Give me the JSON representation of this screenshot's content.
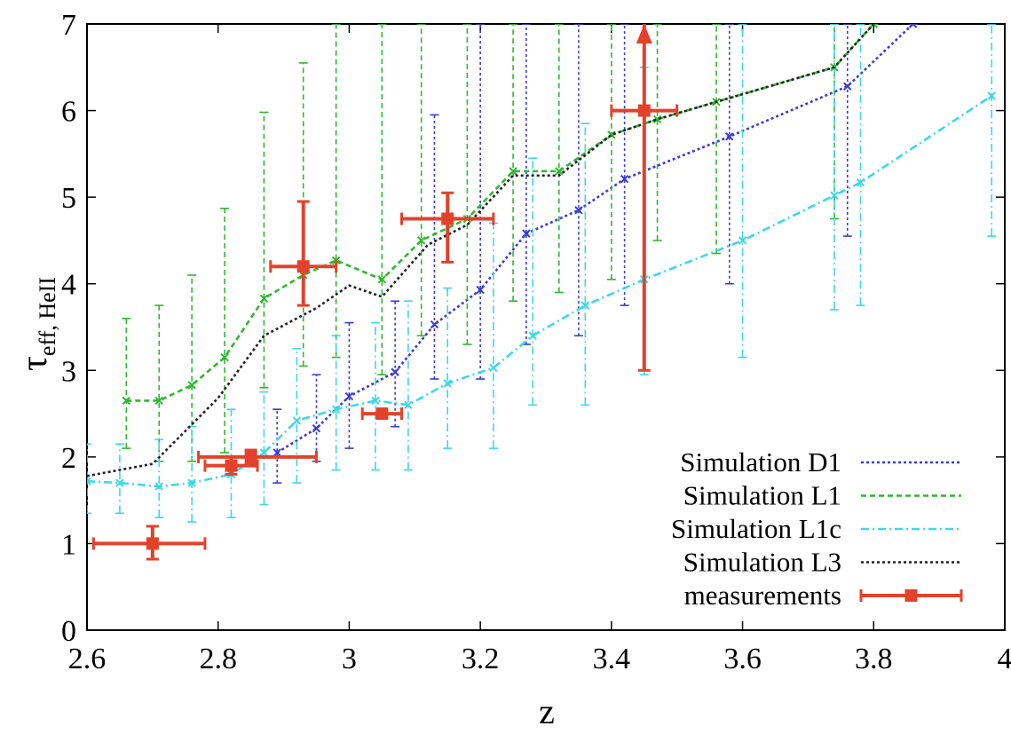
{
  "chart_data": {
    "type": "line",
    "xlabel": "z",
    "ylabel_main": "τ",
    "ylabel_sub": "eff, HeII",
    "xlim": [
      2.6,
      4.0
    ],
    "ylim": [
      0,
      7
    ],
    "xticks": [
      2.6,
      2.8,
      3.0,
      3.2,
      3.4,
      3.6,
      3.8,
      4.0
    ],
    "xtick_labels": [
      "2.6",
      "2.8",
      "3",
      "3.2",
      "3.4",
      "3.6",
      "3.8",
      "4"
    ],
    "yticks": [
      0,
      1,
      2,
      3,
      4,
      5,
      6,
      7
    ],
    "ytick_labels": [
      "0",
      "1",
      "2",
      "3",
      "4",
      "5",
      "6",
      "7"
    ],
    "grid": false,
    "legend_position": "bottom-right",
    "series": [
      {
        "name": "Simulation D1",
        "color": "#3b3bd6",
        "style": "dotted",
        "x": [
          2.89,
          2.95,
          3.0,
          3.07,
          3.13,
          3.2,
          3.27,
          3.35,
          3.42,
          3.58,
          3.76,
          3.86
        ],
        "y": [
          2.05,
          2.33,
          2.7,
          2.98,
          3.53,
          3.93,
          4.58,
          4.85,
          5.21,
          5.7,
          6.28,
          7.0
        ],
        "ylow": [
          1.7,
          1.95,
          2.1,
          2.35,
          2.9,
          2.9,
          3.3,
          3.4,
          3.75,
          4.0,
          4.55,
          7.0
        ],
        "yhigh": [
          2.55,
          2.95,
          3.55,
          3.8,
          5.95,
          7.0,
          7.0,
          7.0,
          7.0,
          7.0,
          7.0,
          7.0
        ]
      },
      {
        "name": "Simulation L1",
        "color": "#2fb82f",
        "style": "dashed",
        "x": [
          2.66,
          2.71,
          2.76,
          2.81,
          2.87,
          2.93,
          2.98,
          3.05,
          3.11,
          3.18,
          3.25,
          3.32,
          3.4,
          3.47,
          3.56,
          3.74,
          3.8
        ],
        "y": [
          2.65,
          2.65,
          2.83,
          3.15,
          3.83,
          4.1,
          4.27,
          4.05,
          4.5,
          4.75,
          5.3,
          5.3,
          5.72,
          5.9,
          6.1,
          6.5,
          7.0
        ],
        "ylow": [
          2.1,
          1.95,
          1.95,
          2.05,
          2.8,
          3.05,
          3.15,
          2.95,
          3.4,
          3.3,
          3.8,
          3.9,
          4.05,
          4.5,
          4.35,
          4.75,
          7.0
        ],
        "yhigh": [
          3.6,
          3.75,
          4.1,
          4.87,
          5.98,
          6.55,
          7.0,
          7.0,
          7.0,
          7.0,
          7.0,
          7.0,
          7.0,
          7.0,
          7.0,
          7.0,
          7.0
        ]
      },
      {
        "name": "Simulation L1c",
        "color": "#3cd8e8",
        "style": "dashdot",
        "x": [
          2.6,
          2.65,
          2.71,
          2.76,
          2.82,
          2.87,
          2.92,
          2.98,
          3.04,
          3.09,
          3.15,
          3.22,
          3.28,
          3.36,
          3.45,
          3.6,
          3.74,
          3.78,
          3.98
        ],
        "y": [
          1.72,
          1.7,
          1.66,
          1.7,
          1.8,
          2.05,
          2.42,
          2.55,
          2.65,
          2.6,
          2.85,
          3.03,
          3.4,
          3.75,
          4.05,
          4.5,
          5.02,
          5.17,
          6.17
        ],
        "ylow": [
          1.35,
          1.35,
          1.3,
          1.25,
          1.3,
          1.45,
          1.7,
          1.85,
          1.85,
          1.85,
          2.1,
          2.1,
          2.6,
          2.6,
          2.95,
          3.15,
          3.7,
          3.75,
          4.55
        ],
        "yhigh": [
          2.15,
          2.15,
          2.2,
          2.35,
          2.55,
          2.75,
          3.25,
          3.4,
          3.55,
          3.8,
          3.95,
          4.7,
          5.45,
          5.85,
          6.5,
          7.0,
          7.0,
          7.0,
          7.0
        ]
      },
      {
        "name": "Simulation L3",
        "color": "#222222",
        "style": "dotted",
        "x": [
          2.6,
          2.7,
          2.8,
          2.87,
          2.95,
          3.0,
          3.05,
          3.12,
          3.18,
          3.25,
          3.32,
          3.4,
          3.47,
          3.56,
          3.74,
          3.8
        ],
        "y": [
          1.78,
          1.92,
          2.68,
          3.4,
          3.72,
          3.98,
          3.85,
          4.45,
          4.68,
          5.25,
          5.25,
          5.72,
          5.9,
          6.1,
          6.5,
          7.0
        ]
      }
    ],
    "measurements": {
      "name": "measurements",
      "color": "#e2422b",
      "points": [
        {
          "x": 2.7,
          "y": 1.0,
          "xerr_low": 0.09,
          "xerr_high": 0.08,
          "yerr_low": 0.18,
          "yerr_high": 0.2
        },
        {
          "x": 2.82,
          "y": 1.9,
          "xerr_low": 0.04,
          "xerr_high": 0.04,
          "yerr_low": 0.1,
          "yerr_high": 0.1
        },
        {
          "x": 2.85,
          "y": 2.0,
          "xerr_low": 0.08,
          "xerr_high": 0.1,
          "yerr_low": 0.08,
          "yerr_high": 0.08
        },
        {
          "x": 2.93,
          "y": 4.2,
          "xerr_low": 0.05,
          "xerr_high": 0.05,
          "yerr_low": 0.45,
          "yerr_high": 0.75
        },
        {
          "x": 3.05,
          "y": 2.5,
          "xerr_low": 0.03,
          "xerr_high": 0.03,
          "yerr_low": 0.05,
          "yerr_high": 0.05
        },
        {
          "x": 3.15,
          "y": 4.75,
          "xerr_low": 0.07,
          "xerr_high": 0.07,
          "yerr_low": 0.5,
          "yerr_high": 0.3
        },
        {
          "x": 3.45,
          "y": 6.0,
          "xerr_low": 0.05,
          "xerr_high": 0.05,
          "yerr_low": 3.0,
          "yerr_high": 1.0,
          "lower_limit": true
        }
      ]
    }
  }
}
